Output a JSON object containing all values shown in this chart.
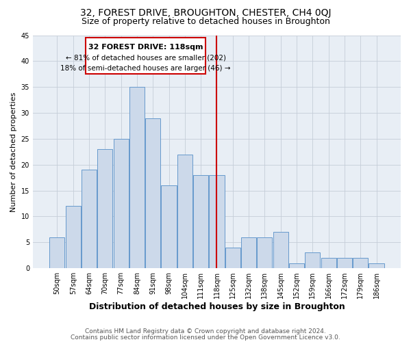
{
  "title": "32, FOREST DRIVE, BROUGHTON, CHESTER, CH4 0QJ",
  "subtitle": "Size of property relative to detached houses in Broughton",
  "xlabel": "Distribution of detached houses by size in Broughton",
  "ylabel": "Number of detached properties",
  "categories": [
    "50sqm",
    "57sqm",
    "64sqm",
    "70sqm",
    "77sqm",
    "84sqm",
    "91sqm",
    "98sqm",
    "104sqm",
    "111sqm",
    "118sqm",
    "125sqm",
    "132sqm",
    "138sqm",
    "145sqm",
    "152sqm",
    "159sqm",
    "166sqm",
    "172sqm",
    "179sqm",
    "186sqm"
  ],
  "values": [
    6,
    12,
    19,
    23,
    25,
    35,
    29,
    16,
    22,
    18,
    18,
    4,
    6,
    6,
    7,
    1,
    3,
    2,
    2,
    2,
    1
  ],
  "bar_color": "#ccd9ea",
  "bar_edge_color": "#6699cc",
  "annotation_title": "32 FOREST DRIVE: 118sqm",
  "annotation_line1": "← 81% of detached houses are smaller (202)",
  "annotation_line2": "18% of semi-detached houses are larger (46) →",
  "annotation_box_color": "#ffffff",
  "annotation_box_edge": "#cc0000",
  "vline_color": "#cc0000",
  "vline_x_index": 10,
  "ylim": [
    0,
    45
  ],
  "yticks": [
    0,
    5,
    10,
    15,
    20,
    25,
    30,
    35,
    40,
    45
  ],
  "footer1": "Contains HM Land Registry data © Crown copyright and database right 2024.",
  "footer2": "Contains public sector information licensed under the Open Government Licence v3.0.",
  "title_fontsize": 10,
  "subtitle_fontsize": 9,
  "ylabel_fontsize": 8,
  "xlabel_fontsize": 9,
  "tick_fontsize": 7,
  "annotation_title_fontsize": 8,
  "annotation_text_fontsize": 7.5,
  "footer_fontsize": 6.5,
  "bg_color": "#e8eef5",
  "grid_color": "#c5cdd8"
}
